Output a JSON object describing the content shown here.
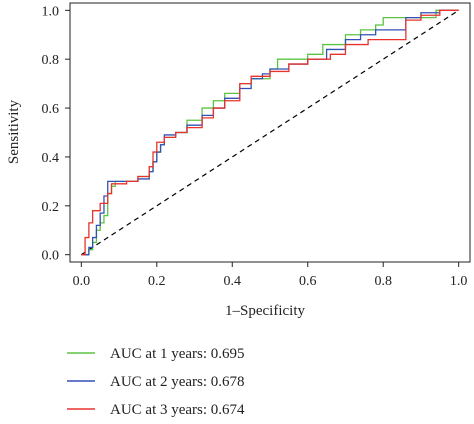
{
  "chart_data": {
    "type": "line",
    "xlabel": "1–Specificity",
    "ylabel": "Sensitivity",
    "xlim": [
      -0.03,
      1.03
    ],
    "ylim": [
      -0.03,
      1.03
    ],
    "x_ticks": [
      "0.0",
      "0.2",
      "0.4",
      "0.6",
      "0.8",
      "1.0"
    ],
    "y_ticks": [
      "0.0",
      "0.2",
      "0.4",
      "0.6",
      "0.8",
      "1.0"
    ],
    "grid": false,
    "legend_position": "bottom",
    "reference_line": {
      "style": "dashed",
      "color": "#000000",
      "x": [
        0,
        1
      ],
      "y": [
        0,
        1
      ]
    },
    "series": [
      {
        "name": "AUC at 1 years: 0.695",
        "color": "#5cc441",
        "points": [
          [
            0,
            0
          ],
          [
            0.02,
            0.02
          ],
          [
            0.03,
            0.05
          ],
          [
            0.04,
            0.1
          ],
          [
            0.05,
            0.13
          ],
          [
            0.06,
            0.16
          ],
          [
            0.07,
            0.2
          ],
          [
            0.07,
            0.25
          ],
          [
            0.08,
            0.28
          ],
          [
            0.09,
            0.3
          ],
          [
            0.12,
            0.3
          ],
          [
            0.15,
            0.32
          ],
          [
            0.18,
            0.34
          ],
          [
            0.19,
            0.38
          ],
          [
            0.2,
            0.42
          ],
          [
            0.21,
            0.45
          ],
          [
            0.22,
            0.48
          ],
          [
            0.25,
            0.5
          ],
          [
            0.28,
            0.55
          ],
          [
            0.32,
            0.6
          ],
          [
            0.35,
            0.63
          ],
          [
            0.38,
            0.66
          ],
          [
            0.42,
            0.7
          ],
          [
            0.45,
            0.72
          ],
          [
            0.48,
            0.72
          ],
          [
            0.5,
            0.76
          ],
          [
            0.52,
            0.8
          ],
          [
            0.56,
            0.8
          ],
          [
            0.6,
            0.82
          ],
          [
            0.64,
            0.86
          ],
          [
            0.7,
            0.9
          ],
          [
            0.74,
            0.92
          ],
          [
            0.78,
            0.94
          ],
          [
            0.8,
            0.97
          ],
          [
            0.9,
            0.97
          ],
          [
            0.94,
            1.0
          ],
          [
            1,
            1
          ]
        ]
      },
      {
        "name": "AUC at 2 years: 0.678",
        "color": "#3350b8",
        "points": [
          [
            0,
            0
          ],
          [
            0.02,
            0.03
          ],
          [
            0.03,
            0.07
          ],
          [
            0.04,
            0.12
          ],
          [
            0.05,
            0.17
          ],
          [
            0.06,
            0.24
          ],
          [
            0.07,
            0.3
          ],
          [
            0.1,
            0.3
          ],
          [
            0.15,
            0.31
          ],
          [
            0.18,
            0.34
          ],
          [
            0.19,
            0.38
          ],
          [
            0.2,
            0.42
          ],
          [
            0.21,
            0.45
          ],
          [
            0.22,
            0.49
          ],
          [
            0.25,
            0.5
          ],
          [
            0.28,
            0.53
          ],
          [
            0.32,
            0.57
          ],
          [
            0.35,
            0.6
          ],
          [
            0.38,
            0.64
          ],
          [
            0.42,
            0.68
          ],
          [
            0.45,
            0.72
          ],
          [
            0.48,
            0.74
          ],
          [
            0.5,
            0.76
          ],
          [
            0.55,
            0.78
          ],
          [
            0.6,
            0.8
          ],
          [
            0.65,
            0.84
          ],
          [
            0.7,
            0.88
          ],
          [
            0.74,
            0.9
          ],
          [
            0.78,
            0.92
          ],
          [
            0.84,
            0.92
          ],
          [
            0.86,
            0.97
          ],
          [
            0.9,
            0.99
          ],
          [
            0.95,
            1.0
          ],
          [
            1,
            1
          ]
        ]
      },
      {
        "name": "AUC at 3 years: 0.674",
        "color": "#e8332d",
        "points": [
          [
            0,
            0
          ],
          [
            0.01,
            0.07
          ],
          [
            0.02,
            0.13
          ],
          [
            0.03,
            0.18
          ],
          [
            0.05,
            0.21
          ],
          [
            0.07,
            0.25
          ],
          [
            0.08,
            0.29
          ],
          [
            0.12,
            0.3
          ],
          [
            0.15,
            0.32
          ],
          [
            0.18,
            0.36
          ],
          [
            0.19,
            0.42
          ],
          [
            0.2,
            0.46
          ],
          [
            0.22,
            0.48
          ],
          [
            0.25,
            0.5
          ],
          [
            0.28,
            0.52
          ],
          [
            0.32,
            0.56
          ],
          [
            0.35,
            0.6
          ],
          [
            0.38,
            0.63
          ],
          [
            0.42,
            0.7
          ],
          [
            0.45,
            0.73
          ],
          [
            0.5,
            0.75
          ],
          [
            0.55,
            0.78
          ],
          [
            0.6,
            0.8
          ],
          [
            0.66,
            0.82
          ],
          [
            0.7,
            0.86
          ],
          [
            0.76,
            0.88
          ],
          [
            0.8,
            0.88
          ],
          [
            0.84,
            0.88
          ],
          [
            0.86,
            0.96
          ],
          [
            0.9,
            0.98
          ],
          [
            0.95,
            1.0
          ],
          [
            1,
            1
          ]
        ]
      }
    ]
  }
}
